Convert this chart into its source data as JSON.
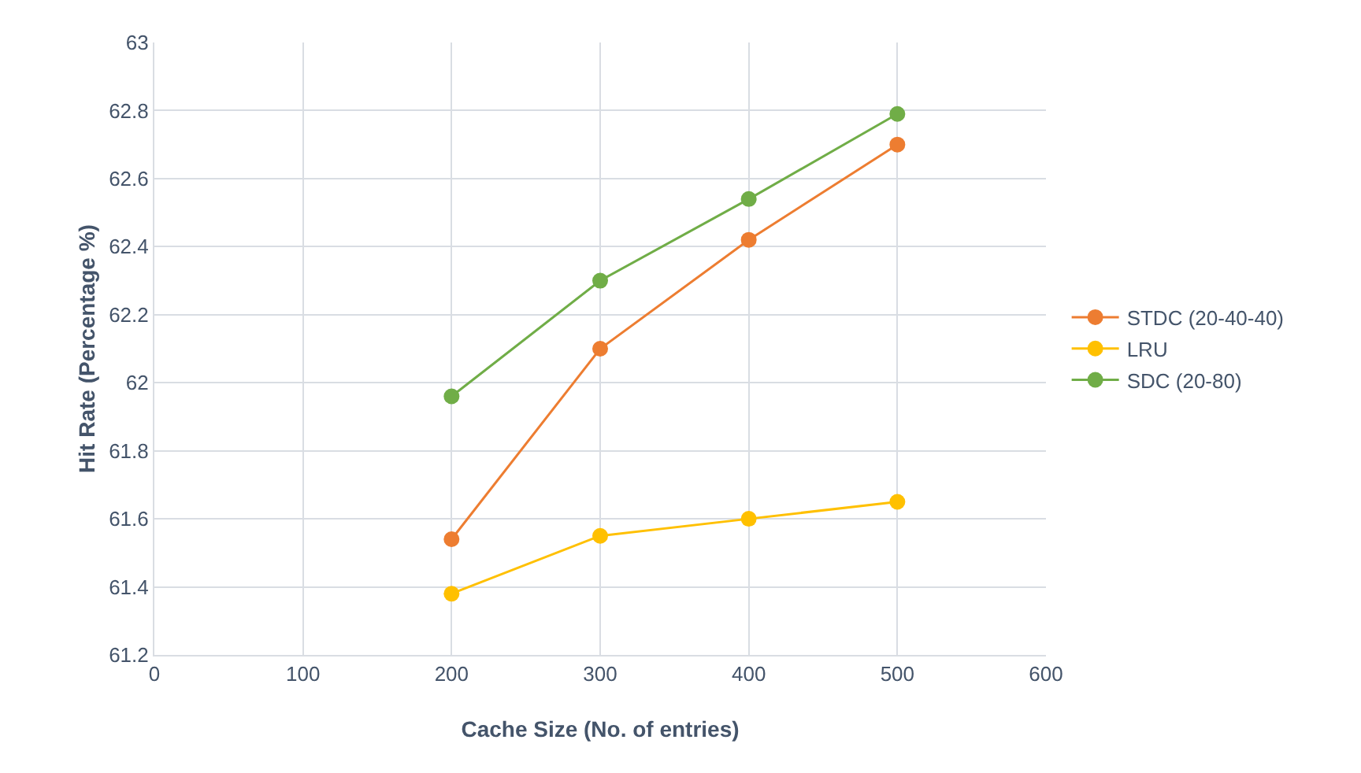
{
  "chart_data": {
    "type": "line",
    "xlabel": "Cache Size (No. of entries)",
    "ylabel": "Hit Rate (Percentage %)",
    "x": [
      200,
      300,
      400,
      500
    ],
    "series": [
      {
        "name": "STDC (20-40-40)",
        "color": "#ed7d31",
        "values": [
          61.54,
          62.1,
          62.42,
          62.7
        ]
      },
      {
        "name": "LRU",
        "color": "#ffc000",
        "values": [
          61.38,
          61.55,
          61.6,
          61.65
        ]
      },
      {
        "name": "SDC (20-80)",
        "color": "#70ad47",
        "values": [
          61.96,
          62.3,
          62.54,
          62.79
        ]
      }
    ],
    "xlim": [
      0,
      600
    ],
    "xticks": [
      0,
      100,
      200,
      300,
      400,
      500,
      600
    ],
    "ylim": [
      61.2,
      63
    ],
    "yticks": [
      61.2,
      61.4,
      61.6,
      61.8,
      62,
      62.2,
      62.4,
      62.6,
      62.8,
      63
    ],
    "grid": true,
    "legend": "right",
    "marker": "circle",
    "line_style": "solid"
  }
}
